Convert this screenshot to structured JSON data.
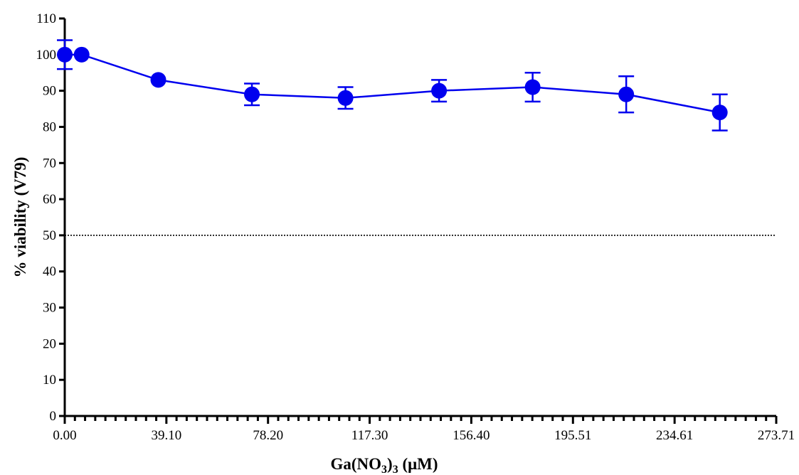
{
  "chart_data": {
    "type": "line",
    "title": "",
    "xlabel": {
      "prefix": "Ga(NO",
      "subscript1": "3",
      "middle": ")",
      "subscript2": "3",
      "suffix": " (μM)"
    },
    "ylabel": "% viability (V79)",
    "xlim": [
      0,
      273.71
    ],
    "ylim": [
      0,
      110
    ],
    "x_tick_labels": [
      "0.00",
      "39.10",
      "78.20",
      "117.30",
      "156.40",
      "195.51",
      "234.61",
      "273.71"
    ],
    "x_tick_values": [
      0,
      39.1,
      78.2,
      117.3,
      156.4,
      195.51,
      234.61,
      273.71
    ],
    "y_ticks": [
      0,
      10,
      20,
      30,
      40,
      50,
      60,
      70,
      80,
      90,
      100,
      110
    ],
    "reference_line": {
      "y": 50,
      "style": "dotted"
    },
    "series": [
      {
        "color": "#0000ee",
        "x": [
          0,
          6.5,
          36,
          72,
          108,
          144,
          180,
          216,
          252
        ],
        "y": [
          100,
          100,
          93,
          89,
          88,
          90,
          91,
          89,
          84
        ],
        "error": [
          4,
          0,
          0,
          3,
          3,
          3,
          4,
          5,
          5
        ]
      }
    ]
  }
}
